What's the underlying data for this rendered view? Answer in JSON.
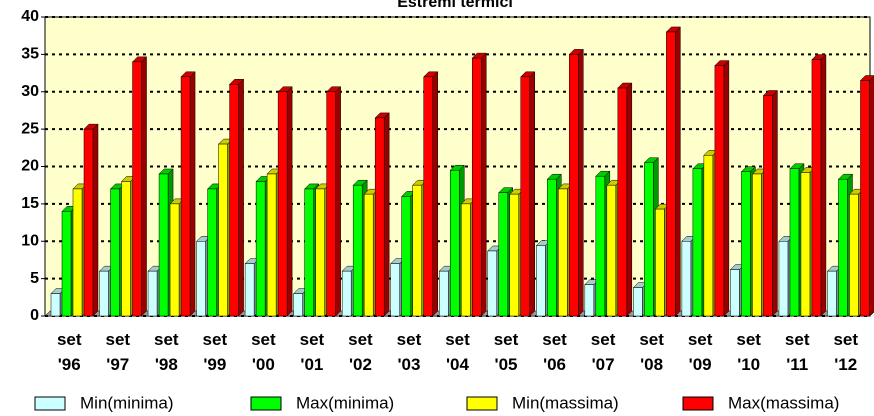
{
  "chart_data": {
    "type": "bar",
    "title": "Estremi termici",
    "categories": [
      "set '96",
      "set '97",
      "set '98",
      "set '99",
      "set '00",
      "set '01",
      "set '02",
      "set '03",
      "set '04",
      "set '05",
      "set '06",
      "set '07",
      "set '08",
      "set '09",
      "set '10",
      "set '11",
      "set '12"
    ],
    "series": [
      {
        "name": "Min(minima)",
        "color": "#ccffff",
        "values": [
          3,
          6,
          6,
          10,
          7,
          3,
          6,
          7,
          6,
          8.7,
          9.4,
          4.2,
          3.8,
          10,
          6.2,
          10,
          6
        ]
      },
      {
        "name": "Max(minima)",
        "color": "#00ff00",
        "values": [
          14,
          17,
          19,
          17,
          18,
          17,
          17.5,
          16,
          19.5,
          16.5,
          18.3,
          18.7,
          20.5,
          19.7,
          19.3,
          19.7,
          18.3
        ]
      },
      {
        "name": "Min(massima)",
        "color": "#ffff00",
        "values": [
          17,
          18,
          15,
          23,
          19,
          17,
          16.3,
          17.5,
          15,
          16.3,
          17,
          17.5,
          14.3,
          21.5,
          19,
          19.2,
          16.3
        ]
      },
      {
        "name": "Max(massima)",
        "color": "#ff0000",
        "values": [
          25,
          34,
          32,
          31,
          30,
          30,
          26.5,
          32,
          34.5,
          32,
          35,
          30.5,
          38,
          33.5,
          29.5,
          34.3,
          31.5
        ]
      }
    ],
    "ylim": [
      0,
      40
    ],
    "yticks": [
      0,
      5,
      10,
      15,
      20,
      25,
      30,
      35,
      40
    ],
    "grid": true,
    "legend": "bottom"
  }
}
